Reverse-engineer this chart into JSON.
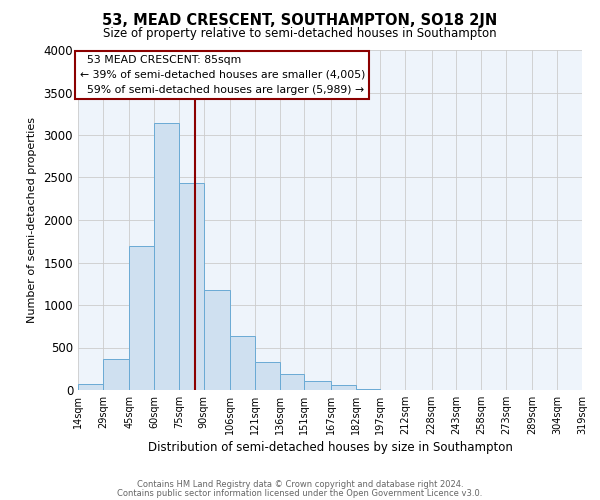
{
  "title": "53, MEAD CRESCENT, SOUTHAMPTON, SO18 2JN",
  "subtitle": "Size of property relative to semi-detached houses in Southampton",
  "xlabel": "Distribution of semi-detached houses by size in Southampton",
  "ylabel": "Number of semi-detached properties",
  "property_size": 85,
  "property_label": "53 MEAD CRESCENT: 85sqm",
  "pct_smaller": 39,
  "pct_larger": 59,
  "n_smaller": 4005,
  "n_larger": 5989,
  "bin_edges": [
    14,
    29,
    45,
    60,
    75,
    90,
    106,
    121,
    136,
    151,
    167,
    182,
    197,
    212,
    228,
    243,
    258,
    273,
    289,
    304,
    319
  ],
  "bin_counts": [
    70,
    365,
    1695,
    3145,
    2435,
    1175,
    635,
    330,
    185,
    110,
    55,
    10,
    0,
    0,
    0,
    0,
    0,
    0,
    5,
    0
  ],
  "bar_facecolor": "#cfe0f0",
  "bar_edgecolor": "#6aaad4",
  "vline_color": "#8b0000",
  "annotation_box_edgecolor": "#8b0000",
  "grid_color": "#cccccc",
  "background_color": "#ffffff",
  "plot_bg_color": "#eef4fb",
  "footer1": "Contains HM Land Registry data © Crown copyright and database right 2024.",
  "footer2": "Contains public sector information licensed under the Open Government Licence v3.0.",
  "ylim": [
    0,
    4000
  ],
  "yticks": [
    0,
    500,
    1000,
    1500,
    2000,
    2500,
    3000,
    3500,
    4000
  ]
}
